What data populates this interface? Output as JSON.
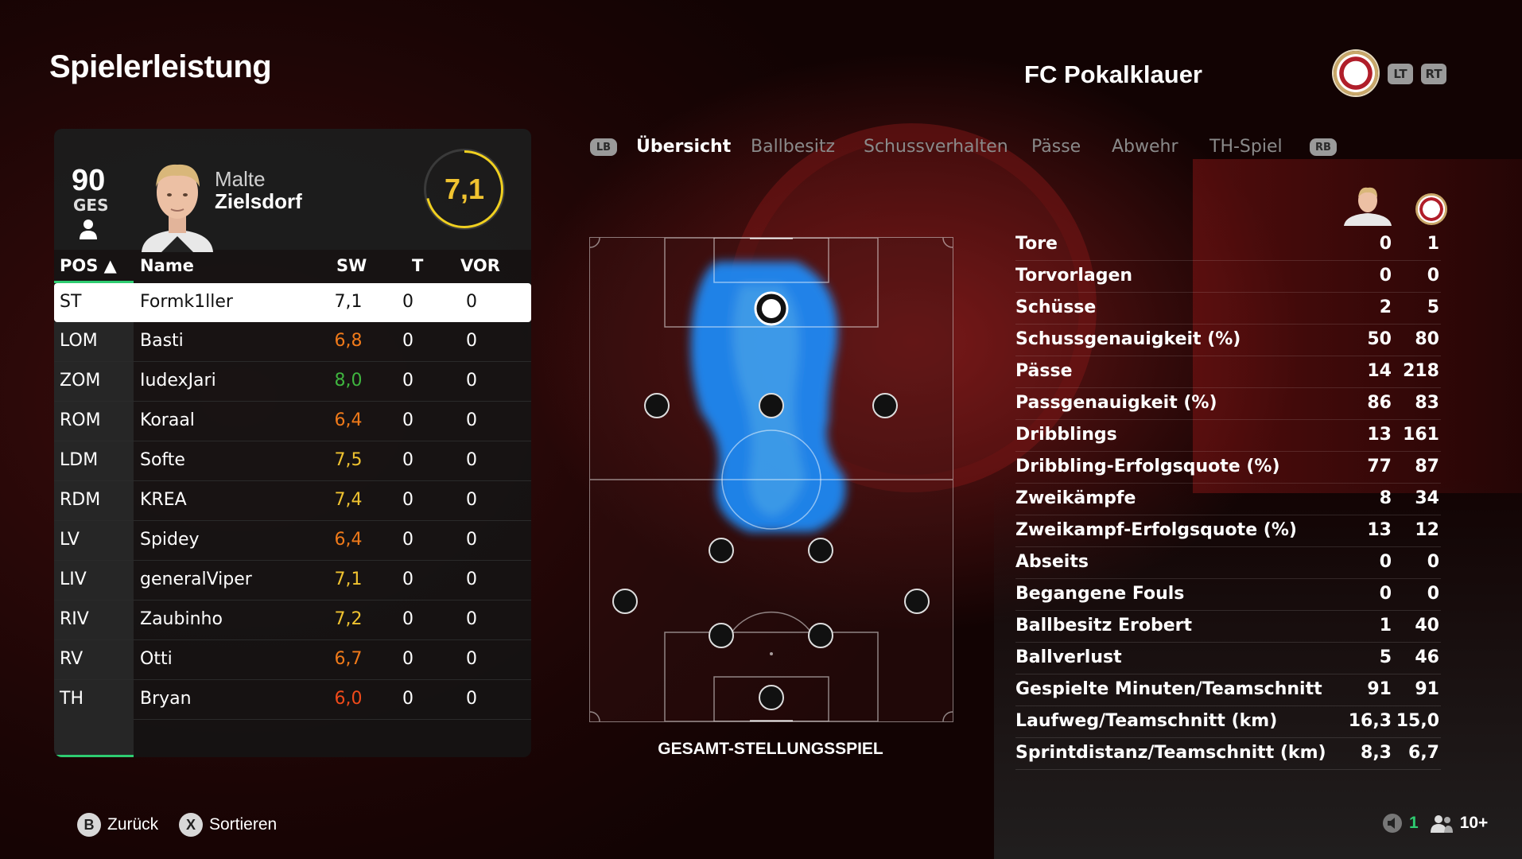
{
  "header": {
    "title": "Spielerleistung",
    "team_name": "FC Pokalklauer",
    "lt_label": "LT",
    "rt_label": "RT"
  },
  "player": {
    "overall": "90",
    "overall_label": "GES",
    "first_name": "Malte",
    "last_name": "Zielsdorf",
    "rating": "7,1"
  },
  "table": {
    "headers": {
      "pos": "POS ▲",
      "name": "Name",
      "sw": "SW",
      "t": "T",
      "vor": "VOR"
    },
    "rows": [
      {
        "pos": "ST",
        "name": "Formk1ller",
        "sw": "7,1",
        "t": "0",
        "vor": "0"
      },
      {
        "pos": "LOM",
        "name": "Basti",
        "sw": "6,8",
        "t": "0",
        "vor": "0"
      },
      {
        "pos": "ZOM",
        "name": "IudexJari",
        "sw": "8,0",
        "t": "0",
        "vor": "0"
      },
      {
        "pos": "ROM",
        "name": "Koraal",
        "sw": "6,4",
        "t": "0",
        "vor": "0"
      },
      {
        "pos": "LDM",
        "name": "Softe",
        "sw": "7,5",
        "t": "0",
        "vor": "0"
      },
      {
        "pos": "RDM",
        "name": "KREA",
        "sw": "7,4",
        "t": "0",
        "vor": "0"
      },
      {
        "pos": "LV",
        "name": "Spidey",
        "sw": "6,4",
        "t": "0",
        "vor": "0"
      },
      {
        "pos": "LIV",
        "name": "generalViper",
        "sw": "7,1",
        "t": "0",
        "vor": "0"
      },
      {
        "pos": "RIV",
        "name": "Zaubinho",
        "sw": "7,2",
        "t": "0",
        "vor": "0"
      },
      {
        "pos": "RV",
        "name": "Otti",
        "sw": "6,7",
        "t": "0",
        "vor": "0"
      },
      {
        "pos": "TH",
        "name": "Bryan",
        "sw": "6,0",
        "t": "0",
        "vor": "0"
      }
    ],
    "rating_colors": {
      "high": "#3fb53f",
      "mid": "#f0c330",
      "low": "#f07a1a",
      "lowest": "#f04a1a"
    }
  },
  "tabs": {
    "lb_label": "LB",
    "rb_label": "RB",
    "items": [
      "Übersicht",
      "Ballbesitz",
      "Schussverhalten",
      "Pässe",
      "Abwehr",
      "TH-Spiel"
    ],
    "active": "Übersicht"
  },
  "pitch": {
    "caption": "GESAMT-STELLUNGSSPIEL",
    "heatmap_color": "#1e8fff"
  },
  "stats": {
    "rows": [
      {
        "label": "Tore",
        "player": "0",
        "team": "1"
      },
      {
        "label": "Torvorlagen",
        "player": "0",
        "team": "0"
      },
      {
        "label": "Schüsse",
        "player": "2",
        "team": "5"
      },
      {
        "label": "Schussgenauigkeit (%)",
        "player": "50",
        "team": "80"
      },
      {
        "label": "Pässe",
        "player": "14",
        "team": "218"
      },
      {
        "label": "Passgenauigkeit (%)",
        "player": "86",
        "team": "83"
      },
      {
        "label": "Dribblings",
        "player": "13",
        "team": "161"
      },
      {
        "label": "Dribbling-Erfolgsquote (%)",
        "player": "77",
        "team": "87"
      },
      {
        "label": "Zweikämpfe",
        "player": "8",
        "team": "34"
      },
      {
        "label": "Zweikampf-Erfolgsquote (%)",
        "player": "13",
        "team": "12"
      },
      {
        "label": "Abseits",
        "player": "0",
        "team": "0"
      },
      {
        "label": "Begangene Fouls",
        "player": "0",
        "team": "0"
      },
      {
        "label": "Ballbesitz Erobert",
        "player": "1",
        "team": "40"
      },
      {
        "label": "Ballverlust",
        "player": "5",
        "team": "46"
      },
      {
        "label": "Gespielte Minuten/Teamschnitt",
        "player": "91",
        "team": "91"
      },
      {
        "label": "Laufweg/Teamschnitt (km)",
        "player": "16,3",
        "team": "15,0"
      },
      {
        "label": "Sprintdistanz/Teamschnitt (km)",
        "player": "8,3",
        "team": "6,7"
      }
    ]
  },
  "footer": {
    "back_key": "B",
    "back_label": "Zurück",
    "sort_key": "X",
    "sort_label": "Sortieren",
    "mic_count": "1",
    "players_count": "10+"
  }
}
